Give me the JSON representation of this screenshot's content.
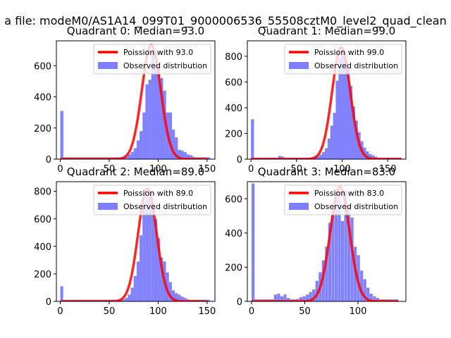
{
  "figure": {
    "suptitle": "a file: modeM0/AS1A14_099T01_9000006536_55508cztM0_level2_quad_clean"
  },
  "colors": {
    "hist": "#7f7fff",
    "poisson": "#ff0000",
    "axis": "#000000"
  },
  "chart_data": [
    {
      "type": "bar",
      "title": "Quadrant 0: Median=93.0",
      "median": 93,
      "xlim": [
        -4,
        158
      ],
      "ylim": [
        0,
        760
      ],
      "xticks": [
        0,
        50,
        100,
        150
      ],
      "yticks": [
        0,
        200,
        400,
        600
      ],
      "legend_position": "upper right",
      "series": [
        {
          "name": "Poission with 93.0",
          "kind": "line",
          "lambda": 93,
          "peak": 735,
          "x_range": [
            0,
            150
          ]
        },
        {
          "name": "Observed distribution",
          "kind": "hist",
          "bin_width": 3.1,
          "bins": [
            [
              0,
              310
            ],
            [
              3,
              12
            ],
            [
              6,
              12
            ],
            [
              9,
              12
            ],
            [
              12,
              12
            ],
            [
              15,
              12
            ],
            [
              18,
              12
            ],
            [
              21,
              12
            ],
            [
              24,
              12
            ],
            [
              27,
              12
            ],
            [
              30,
              12
            ],
            [
              33,
              12
            ],
            [
              36,
              12
            ],
            [
              39,
              12
            ],
            [
              42,
              12
            ],
            [
              45,
              12
            ],
            [
              48,
              12
            ],
            [
              51,
              12
            ],
            [
              54,
              12
            ],
            [
              57,
              12
            ],
            [
              60,
              12
            ],
            [
              63,
              15
            ],
            [
              66,
              18
            ],
            [
              69,
              30
            ],
            [
              72,
              45
            ],
            [
              75,
              70
            ],
            [
              78,
              120
            ],
            [
              81,
              180
            ],
            [
              84,
              300
            ],
            [
              87,
              480
            ],
            [
              90,
              510
            ],
            [
              93,
              690
            ],
            [
              96,
              615
            ],
            [
              99,
              580
            ],
            [
              102,
              520
            ],
            [
              105,
              440
            ],
            [
              108,
              300
            ],
            [
              111,
              300
            ],
            [
              114,
              190
            ],
            [
              117,
              140
            ],
            [
              120,
              60
            ],
            [
              123,
              55
            ],
            [
              126,
              45
            ],
            [
              129,
              30
            ],
            [
              132,
              25
            ],
            [
              135,
              15
            ],
            [
              138,
              12
            ],
            [
              141,
              12
            ],
            [
              144,
              12
            ],
            [
              147,
              12
            ],
            [
              150,
              12
            ]
          ]
        }
      ]
    },
    {
      "type": "bar",
      "title": "Quadrant 1: Median=99.0",
      "median": 99,
      "xlim": [
        -4,
        170
      ],
      "ylim": [
        0,
        920
      ],
      "xticks": [
        0,
        50,
        100,
        150
      ],
      "yticks": [
        0,
        200,
        400,
        600,
        800
      ],
      "legend_position": "upper right",
      "series": [
        {
          "name": "Poission with 99.0",
          "kind": "line",
          "lambda": 99,
          "peak": 870,
          "x_range": [
            0,
            165
          ]
        },
        {
          "name": "Observed distribution",
          "kind": "hist",
          "bin_width": 3.3,
          "bins": [
            [
              0,
              310
            ],
            [
              3,
              12
            ],
            [
              6,
              12
            ],
            [
              9,
              12
            ],
            [
              12,
              12
            ],
            [
              15,
              12
            ],
            [
              18,
              12
            ],
            [
              21,
              12
            ],
            [
              24,
              12
            ],
            [
              27,
              12
            ],
            [
              30,
              25
            ],
            [
              33,
              20
            ],
            [
              36,
              12
            ],
            [
              39,
              12
            ],
            [
              42,
              12
            ],
            [
              45,
              12
            ],
            [
              48,
              12
            ],
            [
              51,
              12
            ],
            [
              54,
              12
            ],
            [
              57,
              12
            ],
            [
              60,
              12
            ],
            [
              63,
              12
            ],
            [
              66,
              15
            ],
            [
              69,
              20
            ],
            [
              72,
              25
            ],
            [
              75,
              35
            ],
            [
              78,
              55
            ],
            [
              81,
              85
            ],
            [
              84,
              160
            ],
            [
              87,
              260
            ],
            [
              90,
              360
            ],
            [
              93,
              610
            ],
            [
              96,
              790
            ],
            [
              99,
              860
            ],
            [
              102,
              770
            ],
            [
              105,
              690
            ],
            [
              108,
              570
            ],
            [
              111,
              410
            ],
            [
              114,
              300
            ],
            [
              117,
              210
            ],
            [
              120,
              140
            ],
            [
              123,
              90
            ],
            [
              126,
              60
            ],
            [
              129,
              40
            ],
            [
              132,
              30
            ],
            [
              135,
              20
            ],
            [
              138,
              12
            ],
            [
              141,
              12
            ],
            [
              144,
              12
            ],
            [
              147,
              12
            ],
            [
              150,
              12
            ],
            [
              153,
              12
            ],
            [
              156,
              12
            ],
            [
              159,
              12
            ],
            [
              162,
              12
            ]
          ]
        }
      ]
    },
    {
      "type": "bar",
      "title": "Quadrant 2: Median=89.0",
      "median": 89,
      "xlim": [
        -4,
        158
      ],
      "ylim": [
        0,
        870
      ],
      "xticks": [
        0,
        50,
        100,
        150
      ],
      "yticks": [
        0,
        200,
        400,
        600,
        800
      ],
      "legend_position": "upper right",
      "series": [
        {
          "name": "Poission with 89.0",
          "kind": "line",
          "lambda": 89,
          "peak": 820,
          "x_range": [
            0,
            150
          ]
        },
        {
          "name": "Observed distribution",
          "kind": "hist",
          "bin_width": 3.0,
          "bins": [
            [
              0,
              110
            ],
            [
              3,
              12
            ],
            [
              6,
              12
            ],
            [
              9,
              12
            ],
            [
              12,
              12
            ],
            [
              15,
              12
            ],
            [
              18,
              12
            ],
            [
              21,
              12
            ],
            [
              24,
              12
            ],
            [
              27,
              12
            ],
            [
              30,
              12
            ],
            [
              33,
              12
            ],
            [
              36,
              12
            ],
            [
              39,
              12
            ],
            [
              42,
              12
            ],
            [
              45,
              12
            ],
            [
              48,
              12
            ],
            [
              51,
              12
            ],
            [
              54,
              12
            ],
            [
              57,
              12
            ],
            [
              60,
              12
            ],
            [
              63,
              15
            ],
            [
              66,
              25
            ],
            [
              69,
              50
            ],
            [
              72,
              100
            ],
            [
              75,
              185
            ],
            [
              78,
              290
            ],
            [
              81,
              480
            ],
            [
              84,
              700
            ],
            [
              87,
              760
            ],
            [
              90,
              800
            ],
            [
              93,
              720
            ],
            [
              96,
              600
            ],
            [
              99,
              460
            ],
            [
              102,
              320
            ],
            [
              105,
              290
            ],
            [
              108,
              210
            ],
            [
              111,
              140
            ],
            [
              114,
              80
            ],
            [
              117,
              60
            ],
            [
              120,
              50
            ],
            [
              123,
              35
            ],
            [
              126,
              25
            ],
            [
              129,
              15
            ],
            [
              132,
              12
            ],
            [
              135,
              12
            ],
            [
              138,
              12
            ],
            [
              141,
              12
            ],
            [
              144,
              12
            ],
            [
              147,
              12
            ],
            [
              150,
              12
            ]
          ]
        }
      ]
    },
    {
      "type": "bar",
      "title": "Quadrant 3: Median=83.0",
      "median": 83,
      "xlim": [
        -4,
        145
      ],
      "ylim": [
        0,
        700
      ],
      "xticks": [
        0,
        50,
        100
      ],
      "yticks": [
        0,
        200,
        400,
        600
      ],
      "legend_position": "upper right",
      "series": [
        {
          "name": "Poission with 83.0",
          "kind": "line",
          "lambda": 83,
          "peak": 670,
          "x_range": [
            0,
            138
          ]
        },
        {
          "name": "Observed distribution",
          "kind": "hist",
          "bin_width": 2.8,
          "bins": [
            [
              0,
              690
            ],
            [
              3,
              12
            ],
            [
              6,
              12
            ],
            [
              9,
              12
            ],
            [
              12,
              12
            ],
            [
              15,
              12
            ],
            [
              18,
              12
            ],
            [
              21,
              40
            ],
            [
              24,
              45
            ],
            [
              27,
              30
            ],
            [
              30,
              40
            ],
            [
              33,
              20
            ],
            [
              36,
              12
            ],
            [
              39,
              12
            ],
            [
              42,
              15
            ],
            [
              45,
              25
            ],
            [
              48,
              30
            ],
            [
              51,
              40
            ],
            [
              54,
              55
            ],
            [
              57,
              70
            ],
            [
              60,
              120
            ],
            [
              63,
              170
            ],
            [
              66,
              240
            ],
            [
              69,
              320
            ],
            [
              72,
              460
            ],
            [
              75,
              520
            ],
            [
              78,
              600
            ],
            [
              81,
              640
            ],
            [
              84,
              470
            ],
            [
              87,
              650
            ],
            [
              90,
              560
            ],
            [
              93,
              490
            ],
            [
              96,
              320
            ],
            [
              99,
              270
            ],
            [
              102,
              180
            ],
            [
              105,
              130
            ],
            [
              108,
              80
            ],
            [
              111,
              45
            ],
            [
              114,
              30
            ],
            [
              117,
              20
            ],
            [
              120,
              12
            ],
            [
              123,
              12
            ],
            [
              126,
              12
            ],
            [
              129,
              12
            ],
            [
              132,
              12
            ],
            [
              135,
              12
            ]
          ]
        }
      ]
    }
  ]
}
